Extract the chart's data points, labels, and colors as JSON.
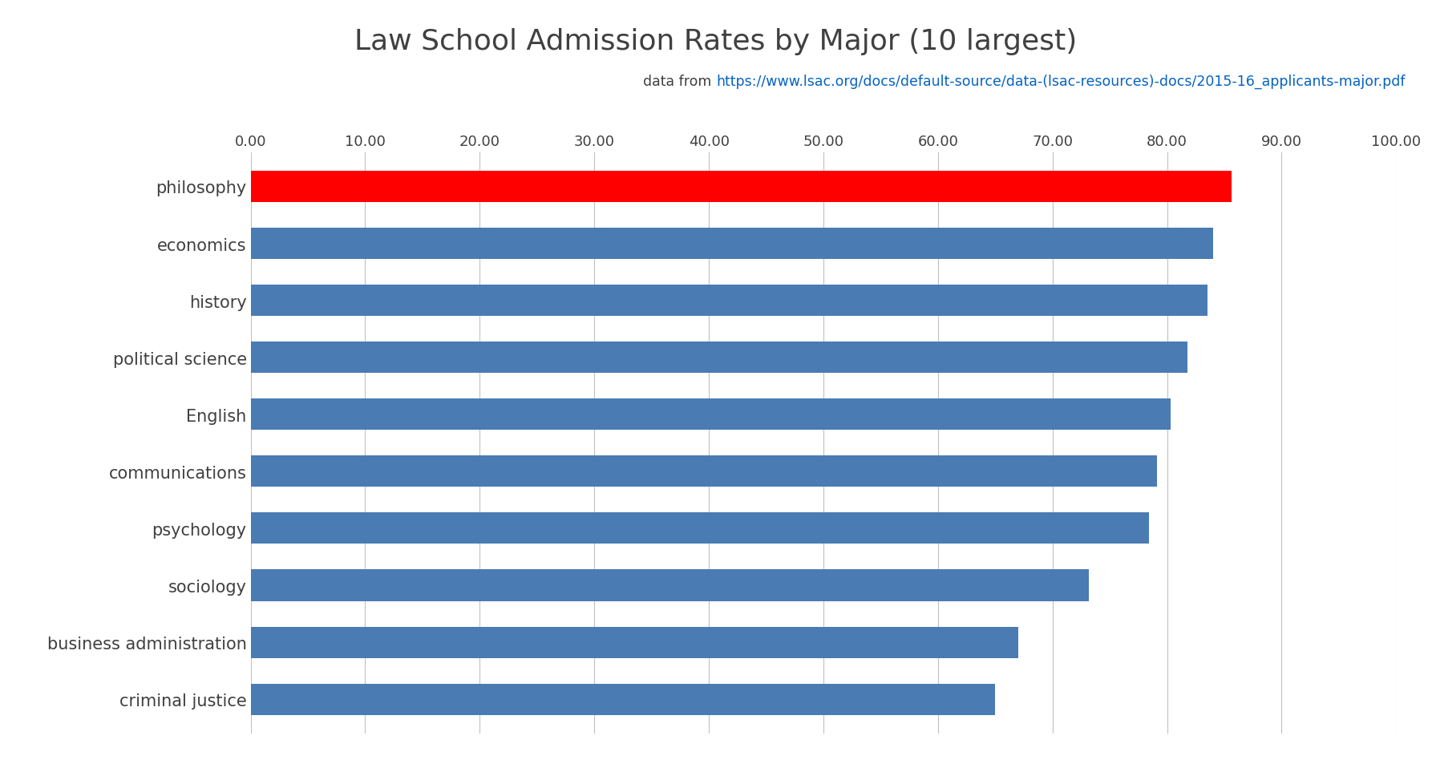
{
  "title": "Law School Admission Rates by Major (10 largest)",
  "subtitle_prefix": "data from ",
  "subtitle_url": "https://www.lsac.org/docs/default-source/data-(lsac-resources)-docs/2015-16_applicants-major.pdf",
  "categories": [
    "philosophy",
    "economics",
    "history",
    "political science",
    "English",
    "communications",
    "psychology",
    "sociology",
    "business administration",
    "criminal justice"
  ],
  "values": [
    85.6,
    84.0,
    83.5,
    81.8,
    80.3,
    79.1,
    78.4,
    73.2,
    67.0,
    65.0
  ],
  "bar_colors": [
    "#ff0000",
    "#4a7bb3",
    "#4a7bb3",
    "#4a7bb3",
    "#4a7bb3",
    "#4a7bb3",
    "#4a7bb3",
    "#4a7bb3",
    "#4a7bb3",
    "#4a7bb3"
  ],
  "xlim": [
    0,
    100
  ],
  "xticks": [
    0,
    10,
    20,
    30,
    40,
    50,
    60,
    70,
    80,
    90,
    100
  ],
  "xtick_labels": [
    "0.00",
    "10.00",
    "20.00",
    "30.00",
    "40.00",
    "50.00",
    "60.00",
    "70.00",
    "80.00",
    "90.00",
    "100.00"
  ],
  "title_fontsize": 26,
  "subtitle_fontsize": 12.5,
  "tick_label_fontsize": 13,
  "ytick_label_fontsize": 15,
  "background_color": "#ffffff",
  "grid_color": "#c0c0c0",
  "bar_height": 0.55,
  "text_color": "#404040",
  "link_color": "#0563C1"
}
